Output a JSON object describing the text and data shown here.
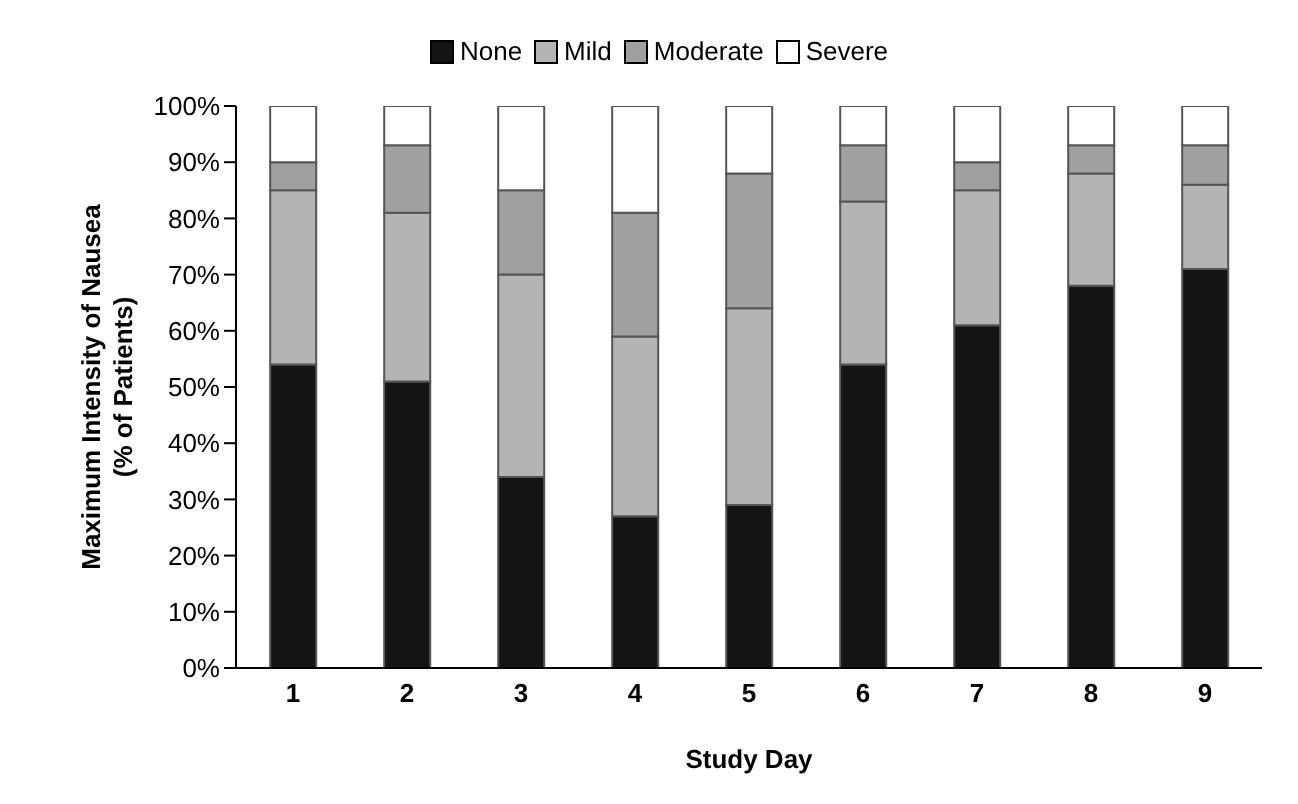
{
  "chart_data": {
    "type": "bar",
    "stacked": true,
    "xlabel": "Study Day",
    "ylabel": "Maximum Intensity of Nausea (% of Patients)",
    "categories": [
      "1",
      "2",
      "3",
      "4",
      "5",
      "6",
      "7",
      "8",
      "9"
    ],
    "series": [
      {
        "name": "None",
        "color": "#141414",
        "values": [
          54,
          51,
          34,
          27,
          29,
          54,
          61,
          68,
          71
        ]
      },
      {
        "name": "Mild",
        "color": "#b4b4b4",
        "values": [
          31,
          30,
          36,
          32,
          35,
          29,
          24,
          20,
          15
        ]
      },
      {
        "name": "Moderate",
        "color": "#a0a0a0",
        "values": [
          5,
          12,
          15,
          22,
          24,
          10,
          5,
          5,
          7
        ]
      },
      {
        "name": "Severe",
        "color": "#ffffff",
        "values": [
          10,
          7,
          15,
          19,
          12,
          7,
          10,
          7,
          7
        ]
      }
    ],
    "ylim": [
      0,
      100
    ],
    "yticks": [
      {
        "value": 0,
        "label": "0%"
      },
      {
        "value": 10,
        "label": "10%"
      },
      {
        "value": 20,
        "label": "20%"
      },
      {
        "value": 30,
        "label": "30%"
      },
      {
        "value": 40,
        "label": "40%"
      },
      {
        "value": 50,
        "label": "50%"
      },
      {
        "value": 60,
        "label": "60%"
      },
      {
        "value": 70,
        "label": "70%"
      },
      {
        "value": 80,
        "label": "80%"
      },
      {
        "value": 90,
        "label": "90%"
      },
      {
        "value": 100,
        "label": "100%"
      }
    ],
    "grid": false,
    "legend": "top"
  }
}
